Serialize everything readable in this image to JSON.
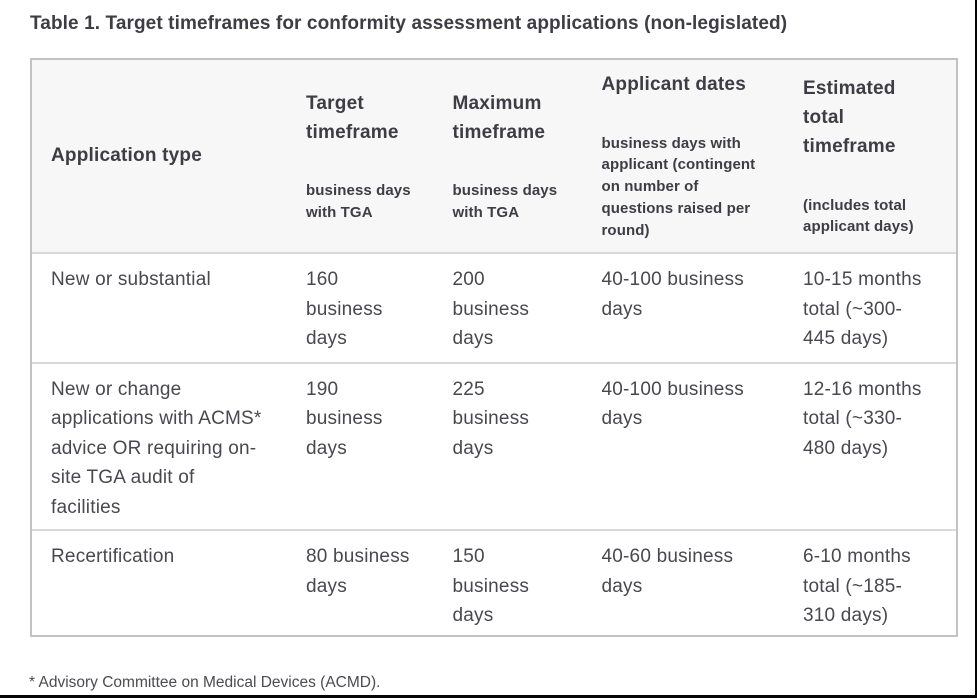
{
  "title": "Table 1. Target timeframes for conformity assessment applications (non-legislated)",
  "table": {
    "header_background": "#f7f7f8",
    "outer_border_color": "#c2c2c5",
    "row_border_color": "#d9d9db",
    "columns": [
      {
        "id": "application-type",
        "label": "Application type",
        "sublabel": ""
      },
      {
        "id": "target-timeframe",
        "label": "Target\ntimeframe",
        "sublabel": "business days\nwith TGA"
      },
      {
        "id": "maximum-timeframe",
        "label": "Maximum\ntimeframe",
        "sublabel": "business days\nwith TGA"
      },
      {
        "id": "applicant-dates",
        "label": "Applicant dates",
        "sublabel": "business days with\napplicant (contingent\non number of\nquestions raised per\nround)"
      },
      {
        "id": "estimated-total",
        "label": "Estimated\ntotal\ntimeframe",
        "sublabel": "(includes total\napplicant days)"
      }
    ],
    "rows": [
      {
        "cells": [
          "New or substantial",
          "160\nbusiness\ndays",
          "200\nbusiness\ndays",
          "40-100 business\ndays",
          "10-15 months\ntotal (~300-\n445 days)"
        ]
      },
      {
        "cells": [
          "New or change\napplications with ACMS*\nadvice OR requiring on-\nsite TGA audit of\nfacilities",
          "190\nbusiness\ndays",
          "225\nbusiness\ndays",
          "40-100 business\ndays",
          "12-16 months\ntotal (~330-\n480 days)"
        ]
      },
      {
        "cells": [
          "Recertification",
          "80 business\ndays",
          "150\nbusiness\ndays",
          "40-60 business\ndays",
          "6-10 months\ntotal (~185-\n310 days)"
        ]
      }
    ]
  },
  "footnote": "* Advisory Committee on Medical Devices (ACMD).",
  "colors": {
    "page_background": "#ffffff",
    "image_frame": "#050505",
    "title_text": "#3d3d43",
    "header_text": "#3d3d43",
    "body_text": "#48484e",
    "footnote_text": "#46464c"
  }
}
